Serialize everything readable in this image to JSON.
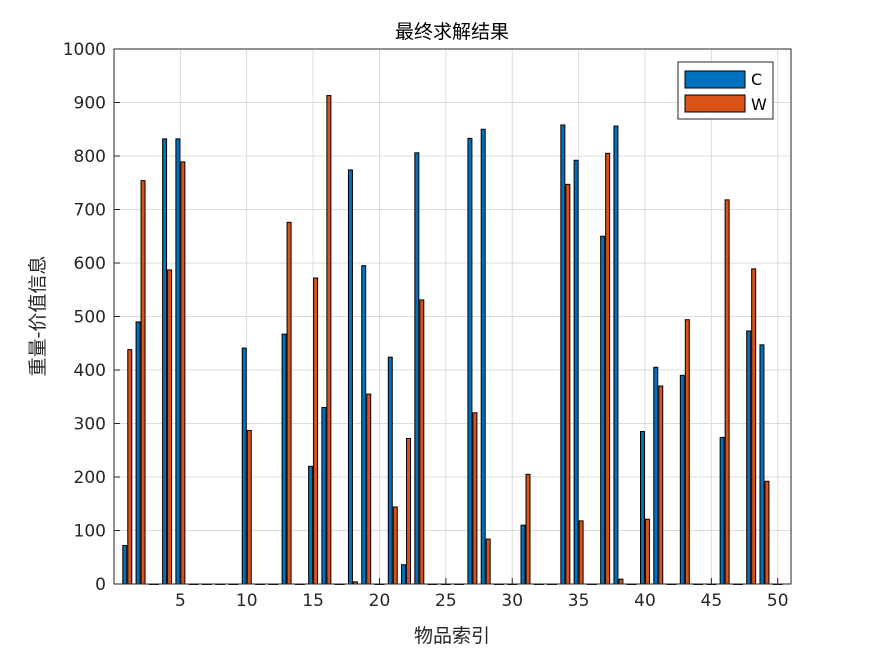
{
  "chart_data": {
    "type": "bar",
    "title": "最终求解结果",
    "xlabel": "物品索引",
    "ylabel": "重量-价值信息",
    "xlim": [
      0,
      51
    ],
    "ylim": [
      0,
      1000
    ],
    "xticks": [
      5,
      10,
      15,
      20,
      25,
      30,
      35,
      40,
      45,
      50
    ],
    "yticks": [
      0,
      100,
      200,
      300,
      400,
      500,
      600,
      700,
      800,
      900,
      1000
    ],
    "grid": true,
    "legend_position": "top-right",
    "x": [
      1,
      2,
      3,
      4,
      5,
      6,
      7,
      8,
      9,
      10,
      11,
      12,
      13,
      14,
      15,
      16,
      17,
      18,
      19,
      20,
      21,
      22,
      23,
      24,
      25,
      26,
      27,
      28,
      29,
      30,
      31,
      32,
      33,
      34,
      35,
      36,
      37,
      38,
      39,
      40,
      41,
      42,
      43,
      44,
      45,
      46,
      47,
      48,
      49,
      50
    ],
    "series": [
      {
        "name": "C",
        "color": "#0072BD",
        "values": [
          72,
          490,
          0,
          832,
          832,
          0,
          0,
          0,
          0,
          441,
          0,
          0,
          467,
          0,
          220,
          330,
          0,
          774,
          595,
          0,
          424,
          36,
          806,
          0,
          0,
          0,
          833,
          850,
          0,
          0,
          110,
          0,
          0,
          858,
          792,
          0,
          650,
          856,
          0,
          285,
          405,
          0,
          390,
          0,
          0,
          274,
          0,
          473,
          447,
          0
        ]
      },
      {
        "name": "W",
        "color": "#D95319",
        "values": [
          438,
          754,
          0,
          587,
          789,
          0,
          0,
          0,
          0,
          287,
          0,
          0,
          676,
          0,
          572,
          913,
          0,
          4,
          355,
          0,
          144,
          272,
          531,
          0,
          0,
          0,
          320,
          84,
          0,
          0,
          205,
          0,
          0,
          747,
          118,
          0,
          805,
          9,
          0,
          121,
          370,
          0,
          494,
          0,
          0,
          718,
          0,
          589,
          192,
          0
        ]
      }
    ]
  }
}
